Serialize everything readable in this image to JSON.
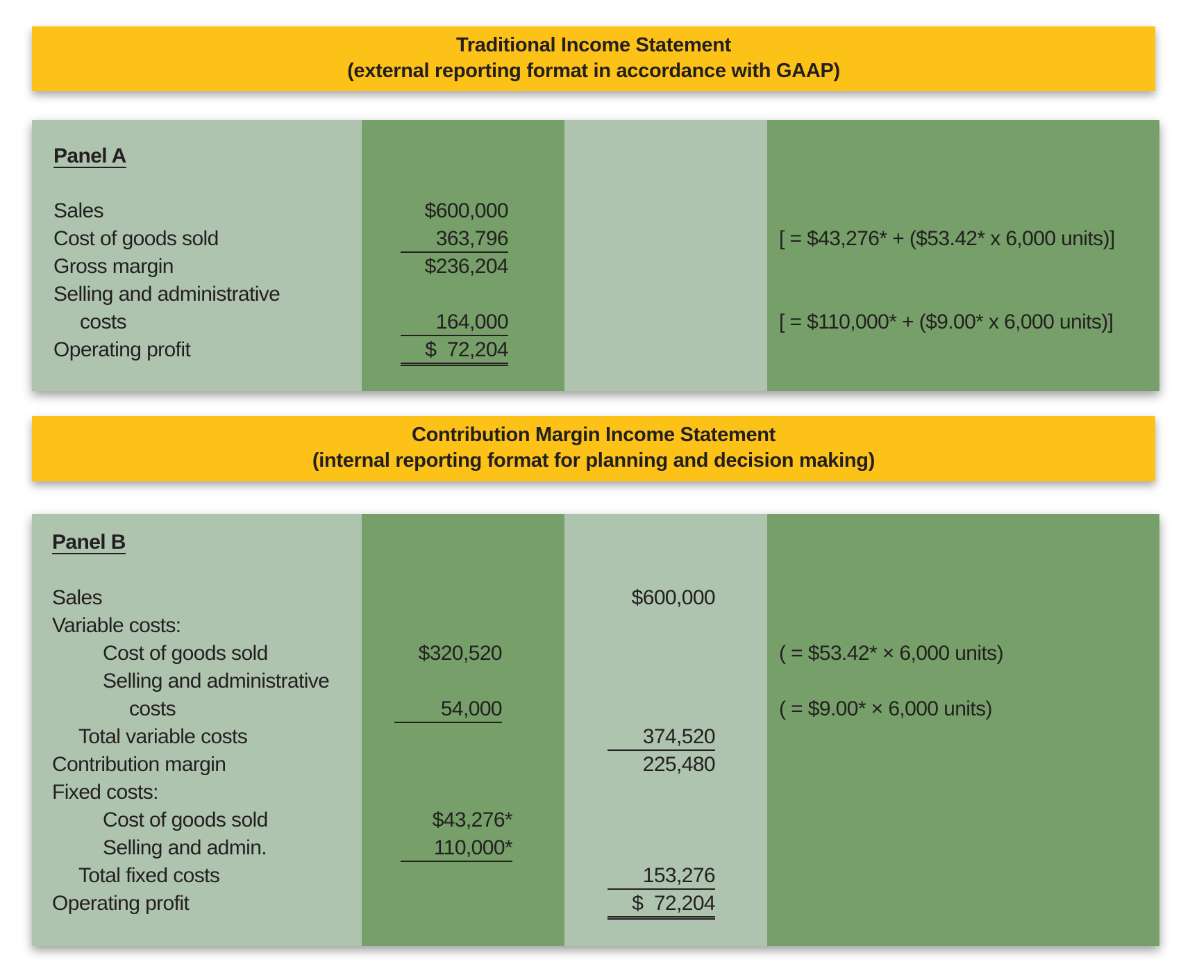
{
  "colors": {
    "banner": "#fdc217",
    "light_green": "#afc4af",
    "dark_green": "#769f69"
  },
  "traditional": {
    "title": "Traditional Income Statement",
    "subtitle": "(external reporting format in accordance with GAAP)",
    "panel_label": "Panel A",
    "rows": [
      {
        "label": "Sales",
        "value": "$600,000"
      },
      {
        "label": "Cost of goods sold",
        "value": "363,796",
        "note": "[ = $43,276* + ($53.42* x 6,000 units)]"
      },
      {
        "label": "Gross margin",
        "value": "$236,204"
      },
      {
        "label": "Selling and administrative"
      },
      {
        "label": "costs",
        "value": "164,000",
        "note": "[ = $110,000* + ($9.00* x 6,000 units)]"
      },
      {
        "label": "Operating profit",
        "value": "$  72,204"
      }
    ]
  },
  "contribution": {
    "title": "Contribution Margin Income Statement",
    "subtitle": "(internal reporting format for planning and decision making)",
    "panel_label": "Panel B",
    "rows": [
      {
        "label": "Sales",
        "total": "$600,000"
      },
      {
        "label": "Variable costs:"
      },
      {
        "label": "Cost of goods sold",
        "value": "$320,520",
        "note": "( = $53.42* × 6,000 units)"
      },
      {
        "label": "Selling and administrative"
      },
      {
        "label": "costs",
        "value": "54,000",
        "note": "( = $9.00* × 6,000 units)"
      },
      {
        "label": "Total variable costs",
        "total": "374,520"
      },
      {
        "label": "Contribution margin",
        "total": "225,480"
      },
      {
        "label": "Fixed costs:"
      },
      {
        "label": "Cost of goods sold",
        "value": "$43,276*"
      },
      {
        "label": "Selling and admin.",
        "value": "110,000*"
      },
      {
        "label": "Total fixed costs",
        "total": "153,276"
      },
      {
        "label": "Operating profit",
        "total": "$  72,204"
      }
    ]
  }
}
